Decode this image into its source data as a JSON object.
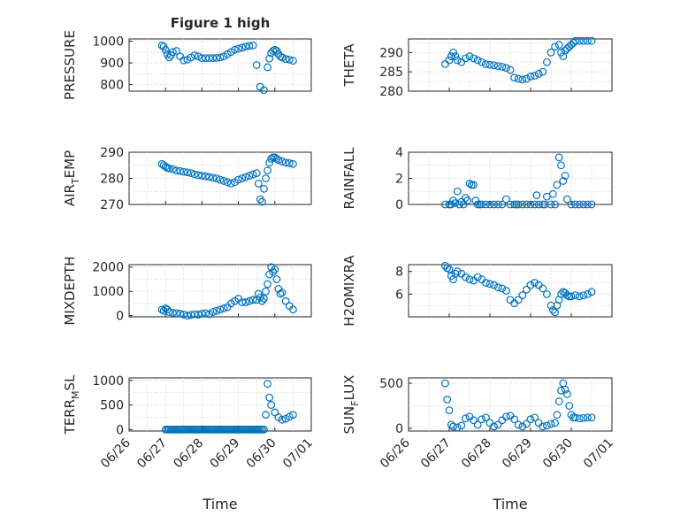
{
  "chart_data": [
    {
      "type": "scatter",
      "title": "Figure 1 high",
      "ylabel": "PRESSURE",
      "xlabel": "",
      "ylim": [
        770,
        1010
      ],
      "yticks": [
        "1000",
        "900",
        "800"
      ],
      "ytickvals": [
        1000,
        900,
        800
      ],
      "x": [
        0.9,
        0.95,
        1.0,
        1.05,
        1.1,
        1.15,
        1.2,
        1.3,
        1.4,
        1.5,
        1.6,
        1.7,
        1.8,
        1.9,
        2.0,
        2.1,
        2.2,
        2.3,
        2.4,
        2.5,
        2.6,
        2.7,
        2.8,
        2.9,
        3.0,
        3.1,
        3.2,
        3.3,
        3.4,
        3.5,
        3.6,
        3.7,
        3.8,
        3.85,
        3.9,
        3.95,
        4.0,
        4.05,
        4.1,
        4.15,
        4.2,
        4.3,
        4.4,
        4.5
      ],
      "y": [
        980,
        975,
        960,
        940,
        925,
        935,
        950,
        955,
        930,
        912,
        915,
        925,
        935,
        930,
        922,
        922,
        922,
        922,
        923,
        925,
        930,
        940,
        950,
        960,
        965,
        970,
        975,
        978,
        980,
        890,
        790,
        775,
        880,
        920,
        945,
        955,
        960,
        955,
        940,
        930,
        925,
        918,
        915,
        910
      ]
    },
    {
      "type": "scatter",
      "title": "",
      "ylabel": "THETA",
      "xlabel": "",
      "ylim": [
        280,
        293.5
      ],
      "yticks": [
        "290",
        "285",
        "280"
      ],
      "ytickvals": [
        290,
        285,
        280
      ],
      "x": [
        0.9,
        1.0,
        1.05,
        1.1,
        1.15,
        1.2,
        1.3,
        1.4,
        1.5,
        1.6,
        1.7,
        1.8,
        1.9,
        2.0,
        2.1,
        2.2,
        2.3,
        2.4,
        2.5,
        2.6,
        2.7,
        2.8,
        2.9,
        3.0,
        3.1,
        3.2,
        3.3,
        3.4,
        3.5,
        3.6,
        3.7,
        3.75,
        3.8,
        3.85,
        3.9,
        3.95,
        4.0,
        4.05,
        4.1,
        4.2,
        4.3,
        4.4,
        4.5
      ],
      "y": [
        287,
        288,
        289,
        290,
        289,
        288,
        287.5,
        288.5,
        289,
        288.5,
        288,
        287.5,
        287,
        286.8,
        286.7,
        286.5,
        286.3,
        286,
        285.5,
        283.5,
        283.2,
        283,
        283.2,
        283.8,
        284,
        284.5,
        285,
        287.5,
        290,
        291.5,
        292,
        290,
        289,
        290.5,
        291,
        291.5,
        292,
        292.5,
        293,
        293,
        293,
        293,
        293
      ]
    },
    {
      "type": "scatter",
      "title": "",
      "ylabel": "AIR_TEMP",
      "xlabel": "",
      "ylim": [
        270,
        290
      ],
      "yticks": [
        "290",
        "280",
        "270"
      ],
      "ytickvals": [
        290,
        280,
        270
      ],
      "x": [
        0.9,
        0.95,
        1.0,
        1.05,
        1.1,
        1.2,
        1.3,
        1.4,
        1.5,
        1.6,
        1.7,
        1.8,
        1.9,
        2.0,
        2.1,
        2.2,
        2.3,
        2.4,
        2.5,
        2.6,
        2.7,
        2.8,
        2.9,
        3.0,
        3.1,
        3.2,
        3.3,
        3.4,
        3.5,
        3.55,
        3.6,
        3.65,
        3.7,
        3.75,
        3.8,
        3.85,
        3.9,
        3.95,
        4.0,
        4.05,
        4.1,
        4.2,
        4.3,
        4.4,
        4.5
      ],
      "y": [
        285.5,
        285,
        284.5,
        284,
        283.8,
        283.5,
        283,
        282.8,
        282.5,
        282.3,
        282,
        281.5,
        281.2,
        281,
        280.8,
        280.5,
        280.2,
        280,
        279.5,
        279,
        278.5,
        278,
        278.5,
        279.5,
        280,
        280.5,
        281,
        281.5,
        282,
        278,
        272,
        271,
        276,
        280,
        283,
        286,
        287.5,
        288,
        288,
        287.5,
        287,
        286.5,
        286,
        285.8,
        285.5
      ]
    },
    {
      "type": "scatter",
      "title": "",
      "ylabel": "RAINFALL",
      "xlabel": "",
      "ylim": [
        0,
        4
      ],
      "yticks": [
        "4",
        "2",
        "0"
      ],
      "ytickvals": [
        4,
        2,
        0
      ],
      "x": [
        0.9,
        1.0,
        1.05,
        1.1,
        1.15,
        1.2,
        1.25,
        1.3,
        1.35,
        1.4,
        1.45,
        1.5,
        1.55,
        1.6,
        1.65,
        1.7,
        1.75,
        1.8,
        1.9,
        2.0,
        2.1,
        2.2,
        2.3,
        2.4,
        2.5,
        2.6,
        2.65,
        2.7,
        2.8,
        2.9,
        3.0,
        3.1,
        3.15,
        3.2,
        3.3,
        3.35,
        3.4,
        3.5,
        3.55,
        3.6,
        3.65,
        3.7,
        3.75,
        3.8,
        3.85,
        3.9,
        4.0,
        4.1,
        4.2,
        4.3,
        4.4,
        4.5
      ],
      "y": [
        0,
        0,
        0,
        0.3,
        0.1,
        1.0,
        0,
        0.2,
        0,
        0.5,
        0.3,
        1.6,
        1.5,
        1.5,
        0.3,
        0,
        0,
        0,
        0,
        0,
        0,
        0,
        0,
        0.4,
        0,
        0,
        0,
        0,
        0,
        0,
        0,
        0,
        0.7,
        0,
        0,
        0,
        0.6,
        0,
        0.8,
        0,
        1.5,
        3.6,
        3.0,
        1.8,
        2.2,
        0.4,
        0,
        0,
        0,
        0,
        0,
        0
      ]
    },
    {
      "type": "scatter",
      "title": "",
      "ylabel": "MIXDEPTH",
      "xlabel": "",
      "ylim": [
        -50,
        2100
      ],
      "yticks": [
        "2000",
        "1000",
        "0"
      ],
      "ytickvals": [
        2000,
        1000,
        0
      ],
      "x": [
        0.9,
        0.95,
        1.0,
        1.05,
        1.1,
        1.2,
        1.3,
        1.4,
        1.5,
        1.6,
        1.7,
        1.8,
        1.9,
        2.0,
        2.1,
        2.2,
        2.3,
        2.4,
        2.5,
        2.6,
        2.7,
        2.8,
        2.9,
        3.0,
        3.1,
        3.2,
        3.3,
        3.4,
        3.5,
        3.55,
        3.6,
        3.65,
        3.7,
        3.75,
        3.8,
        3.85,
        3.9,
        3.95,
        4.0,
        4.05,
        4.1,
        4.15,
        4.2,
        4.3,
        4.4,
        4.5
      ],
      "y": [
        250,
        200,
        300,
        250,
        150,
        120,
        100,
        80,
        50,
        0,
        30,
        60,
        40,
        80,
        100,
        60,
        150,
        200,
        250,
        300,
        350,
        500,
        600,
        700,
        550,
        550,
        600,
        650,
        650,
        900,
        750,
        600,
        700,
        1000,
        1300,
        1700,
        2000,
        1800,
        1900,
        1500,
        1100,
        900,
        950,
        600,
        400,
        250
      ]
    },
    {
      "type": "scatter",
      "title": "",
      "ylabel": "H2OMIXRA",
      "xlabel": "",
      "ylim": [
        4,
        8.6
      ],
      "yticks": [
        "8",
        "6"
      ],
      "ytickvals": [
        8,
        6
      ],
      "x": [
        0.9,
        0.95,
        1.0,
        1.05,
        1.1,
        1.15,
        1.2,
        1.3,
        1.4,
        1.5,
        1.6,
        1.7,
        1.8,
        1.9,
        2.0,
        2.1,
        2.2,
        2.3,
        2.4,
        2.5,
        2.6,
        2.7,
        2.8,
        2.9,
        3.0,
        3.1,
        3.2,
        3.3,
        3.4,
        3.5,
        3.55,
        3.6,
        3.65,
        3.7,
        3.75,
        3.8,
        3.85,
        3.9,
        3.95,
        4.0,
        4.1,
        4.2,
        4.3,
        4.4,
        4.5
      ],
      "y": [
        8.5,
        8.3,
        8.2,
        7.6,
        7.3,
        7.8,
        8.0,
        7.8,
        7.5,
        7.3,
        7.2,
        7.5,
        7.3,
        7.0,
        6.9,
        6.8,
        6.6,
        6.5,
        6.3,
        5.5,
        5.2,
        5.5,
        5.9,
        6.4,
        6.8,
        7.0,
        6.8,
        6.5,
        6.0,
        5.0,
        4.6,
        4.4,
        5.0,
        5.5,
        6.0,
        6.2,
        6.1,
        5.9,
        5.8,
        5.8,
        5.9,
        5.8,
        5.9,
        6.0,
        6.2
      ]
    },
    {
      "type": "scatter",
      "title": "",
      "ylabel": "TERR_MSL",
      "xlabel": "Time",
      "ylim": [
        -30,
        1050
      ],
      "yticks": [
        "1000",
        "500",
        "0"
      ],
      "ytickvals": [
        1000,
        500,
        0
      ],
      "x": [
        1.0,
        1.05,
        1.1,
        1.15,
        1.2,
        1.25,
        1.3,
        1.35,
        1.4,
        1.45,
        1.5,
        1.55,
        1.6,
        1.65,
        1.7,
        1.75,
        1.8,
        1.85,
        1.9,
        1.95,
        2.0,
        2.05,
        2.1,
        2.15,
        2.2,
        2.25,
        2.3,
        2.35,
        2.4,
        2.45,
        2.5,
        2.55,
        2.6,
        2.65,
        2.7,
        2.75,
        2.8,
        2.85,
        2.9,
        2.95,
        3.0,
        3.05,
        3.1,
        3.15,
        3.2,
        3.25,
        3.3,
        3.35,
        3.4,
        3.45,
        3.5,
        3.55,
        3.6,
        3.65,
        3.7,
        3.75,
        3.8,
        3.85,
        3.9,
        4.0,
        4.1,
        4.2,
        4.3,
        4.4,
        4.5
      ],
      "y": [
        0,
        0,
        0,
        0,
        0,
        0,
        0,
        0,
        0,
        0,
        0,
        0,
        0,
        0,
        0,
        0,
        0,
        0,
        0,
        0,
        0,
        0,
        0,
        0,
        0,
        0,
        0,
        0,
        0,
        0,
        0,
        0,
        0,
        0,
        0,
        0,
        0,
        0,
        0,
        0,
        0,
        0,
        0,
        0,
        0,
        0,
        0,
        0,
        0,
        0,
        0,
        0,
        0,
        0,
        0,
        300,
        930,
        650,
        500,
        350,
        250,
        200,
        220,
        260,
        300
      ]
    },
    {
      "type": "scatter",
      "title": "",
      "ylabel": "SUN_FLUX",
      "xlabel": "Time",
      "ylim": [
        -30,
        560
      ],
      "yticks": [
        "500",
        "0"
      ],
      "ytickvals": [
        500,
        0
      ],
      "x": [
        0.9,
        0.95,
        1.0,
        1.05,
        1.1,
        1.2,
        1.3,
        1.4,
        1.5,
        1.6,
        1.7,
        1.8,
        1.9,
        2.0,
        2.1,
        2.2,
        2.3,
        2.4,
        2.5,
        2.6,
        2.7,
        2.8,
        2.9,
        3.0,
        3.1,
        3.2,
        3.3,
        3.4,
        3.5,
        3.6,
        3.65,
        3.7,
        3.75,
        3.8,
        3.85,
        3.9,
        3.95,
        4.0,
        4.05,
        4.1,
        4.2,
        4.3,
        4.4,
        4.5
      ],
      "y": [
        500,
        320,
        200,
        40,
        20,
        10,
        30,
        110,
        130,
        90,
        40,
        100,
        120,
        60,
        20,
        40,
        90,
        130,
        140,
        100,
        40,
        20,
        50,
        100,
        120,
        60,
        20,
        30,
        50,
        60,
        150,
        300,
        420,
        500,
        430,
        380,
        250,
        150,
        120,
        120,
        110,
        115,
        120,
        120
      ]
    }
  ],
  "xticks": [
    "06/26",
    "06/27",
    "06/28",
    "06/29",
    "06/30",
    "07/01"
  ],
  "xlabel": "Time",
  "title": "Figure 1 high",
  "colors": {
    "marker": "#0072bd",
    "axes": "#262626",
    "grid": "#d0d0d0"
  }
}
